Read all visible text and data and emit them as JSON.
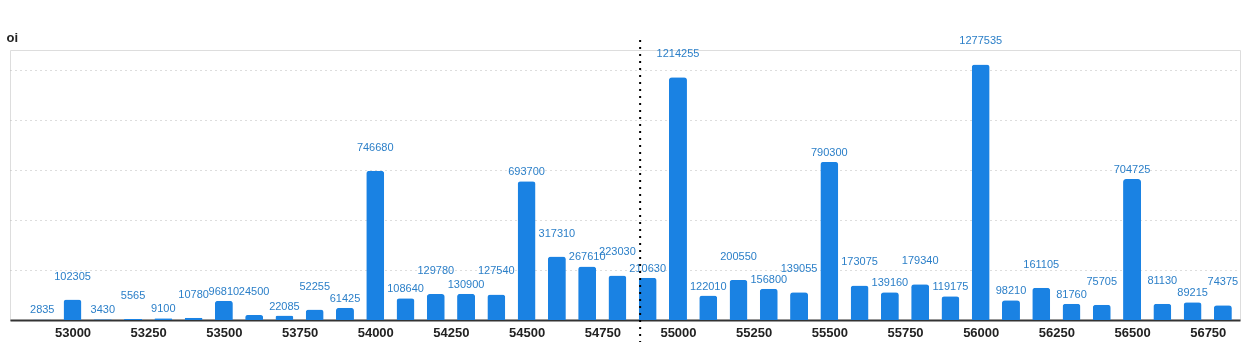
{
  "chart_data": {
    "type": "bar",
    "ylabel": "oi",
    "x": [
      52900,
      53000,
      53100,
      53200,
      53300,
      53400,
      53500,
      53600,
      53700,
      53800,
      53900,
      54000,
      54100,
      54200,
      54300,
      54400,
      54500,
      54600,
      54700,
      54800,
      54900,
      55000,
      55100,
      55200,
      55300,
      55400,
      55500,
      55600,
      55700,
      55800,
      55900,
      56000,
      56100,
      56200,
      56300,
      56400,
      56500,
      56600,
      56700,
      56800
    ],
    "values": [
      2835,
      102305,
      3430,
      5565,
      9100,
      10780,
      96810,
      24500,
      22085,
      52255,
      61425,
      746680,
      108640,
      129780,
      130900,
      127540,
      693700,
      317310,
      267610,
      223030,
      210630,
      1214255,
      122010,
      200550,
      156800,
      139055,
      790300,
      173075,
      139160,
      179340,
      119175,
      1277535,
      98210,
      161105,
      81760,
      75705,
      704725,
      81130,
      89215,
      74375
    ],
    "color": "#1a82e3",
    "xlim": [
      52810,
      56840
    ],
    "xticks": [
      53000,
      53250,
      53500,
      53750,
      54000,
      54250,
      54500,
      54750,
      55000,
      55250,
      55500,
      55750,
      56000,
      56250,
      56500,
      56750
    ],
    "ylim": [
      0,
      1350000
    ],
    "yticks": [
      {
        "value": 0,
        "label": null
      },
      {
        "value": 250000,
        "label": null
      },
      {
        "value": 500000,
        "label": null
      },
      {
        "value": 750000,
        "label": null
      },
      {
        "value": 1000000,
        "label": null
      },
      {
        "value": 1250000,
        "label": null
      }
    ],
    "ref_lines": [
      {
        "axis": "x",
        "value": 54875,
        "color": "#000000",
        "line_style": "dotted"
      }
    ],
    "tick_labels": "x",
    "grid": "y",
    "data_labels": true
  }
}
